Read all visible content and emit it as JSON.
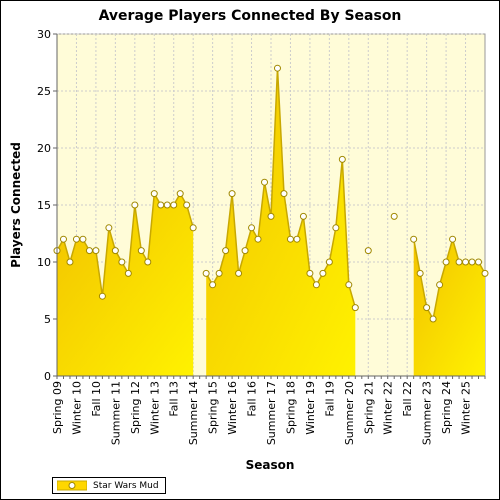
{
  "chart_data": {
    "type": "area",
    "title": "Average Players Connected By Season",
    "xlabel": "Season",
    "ylabel": "Players Connected",
    "ylim": [
      0,
      30
    ],
    "yticks": [
      0,
      5,
      10,
      15,
      20,
      25,
      30
    ],
    "grid": true,
    "legend_position": "bottom-left",
    "colors": {
      "fill": "#ffd700",
      "line": "#c8a800",
      "marker": "#ffffff",
      "plot_bg": "#fffcd8",
      "grid": "#cccccc"
    },
    "tick_labels": [
      "Spring 09",
      "Winter 10",
      "Fall 10",
      "Summer 11",
      "Spring 12",
      "Winter 13",
      "Fall 13",
      "Summer 14",
      "Spring 15",
      "Winter 16",
      "Fall 16",
      "Summer 17",
      "Spring 18",
      "Winter 19",
      "Fall 19",
      "Summer 20",
      "Spring 21",
      "Winter 22",
      "Fall 22",
      "Summer 23",
      "Spring 24",
      "Winter 25"
    ],
    "series": [
      {
        "name": "Star Wars Mud",
        "values": [
          11,
          12,
          10,
          12,
          12,
          11,
          11,
          7,
          13,
          11,
          10,
          9,
          15,
          11,
          10,
          16,
          15,
          15,
          15,
          16,
          15,
          13,
          null,
          9,
          8,
          9,
          11,
          16,
          9,
          11,
          13,
          12,
          17,
          14,
          27,
          16,
          12,
          12,
          14,
          9,
          8,
          9,
          10,
          13,
          19,
          8,
          6,
          null,
          11,
          null,
          null,
          null,
          14,
          null,
          null,
          12,
          9,
          6,
          5,
          8,
          10,
          12,
          10,
          10,
          10,
          10,
          9
        ]
      }
    ]
  }
}
